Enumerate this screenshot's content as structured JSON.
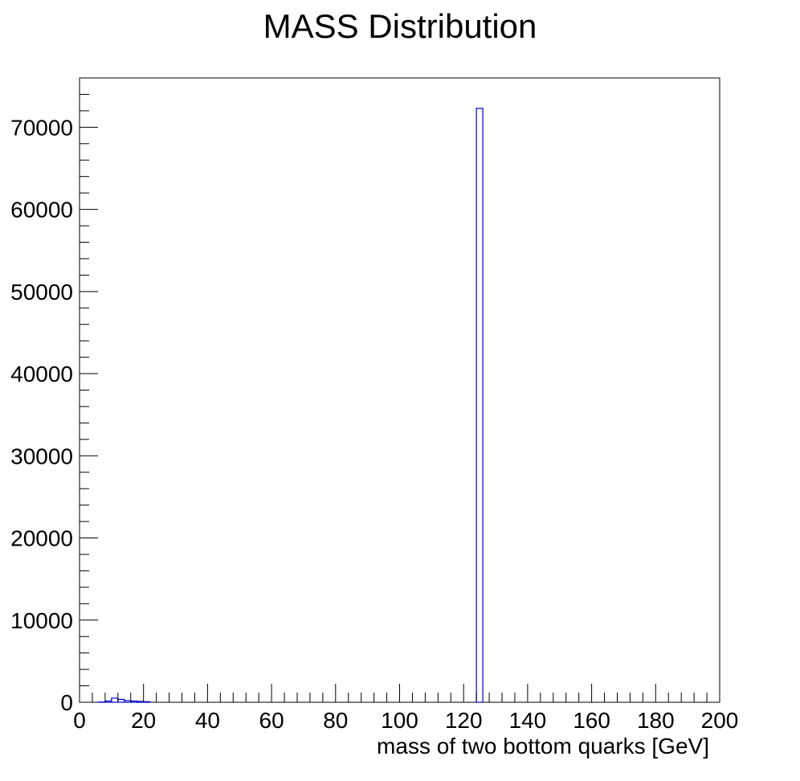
{
  "chart_data": {
    "type": "bar",
    "title": "MASS Distribution",
    "xlabel": "mass of two bottom quarks [GeV]",
    "ylabel": "",
    "xlim": [
      0,
      200
    ],
    "ylim": [
      0,
      76000
    ],
    "x_ticks": [
      0,
      20,
      40,
      60,
      80,
      100,
      120,
      140,
      160,
      180,
      200
    ],
    "y_ticks": [
      0,
      10000,
      20000,
      30000,
      40000,
      50000,
      60000,
      70000
    ],
    "bin_width": 2,
    "grid": false,
    "histogram_color": "#0000cc",
    "bins": [
      {
        "x": 4,
        "value": 0
      },
      {
        "x": 6,
        "value": 30
      },
      {
        "x": 8,
        "value": 150
      },
      {
        "x": 10,
        "value": 500
      },
      {
        "x": 12,
        "value": 350
      },
      {
        "x": 14,
        "value": 200
      },
      {
        "x": 16,
        "value": 150
      },
      {
        "x": 18,
        "value": 100
      },
      {
        "x": 20,
        "value": 70
      },
      {
        "x": 22,
        "value": 0
      },
      {
        "x": 124,
        "value": 72300
      },
      {
        "x": 126,
        "value": 0
      }
    ]
  }
}
